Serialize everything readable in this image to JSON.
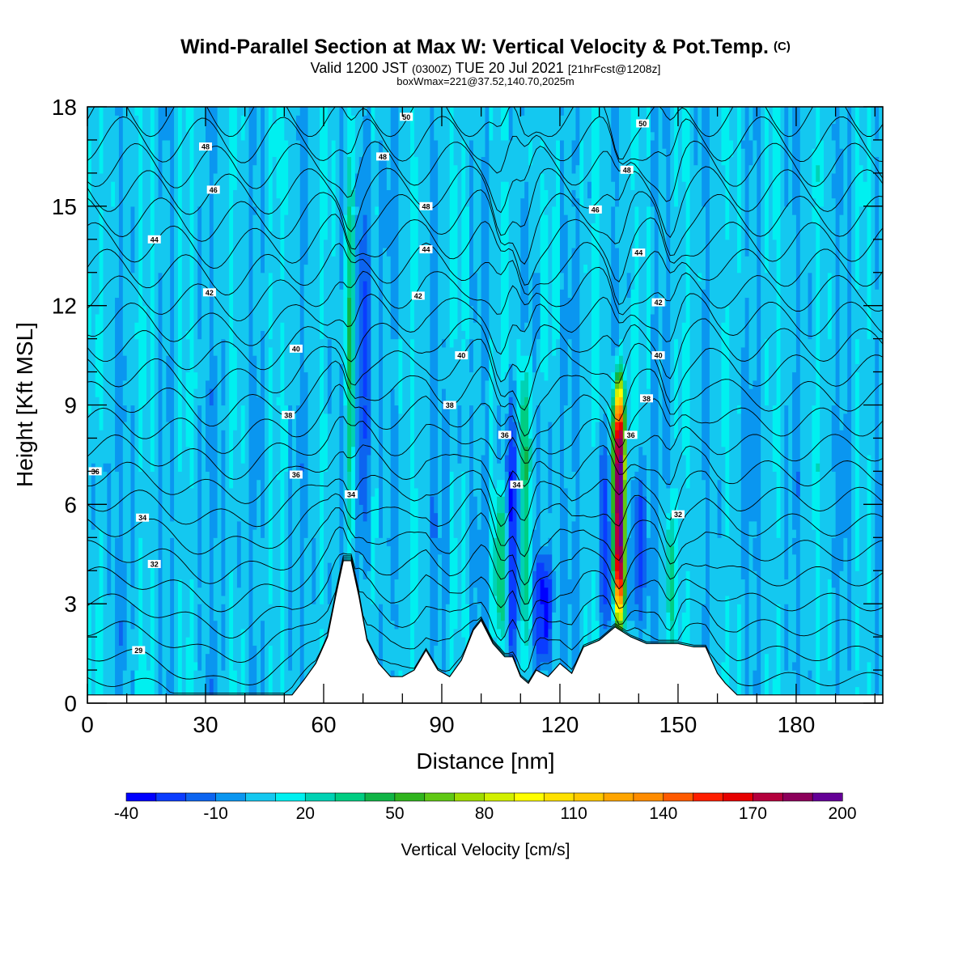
{
  "header": {
    "title": "Wind-Parallel Section at Max W: Vertical Velocity & Pot.Temp.",
    "copyright": "(C)",
    "valid_prefix": "Valid 1200 JST",
    "valid_utc": "(0300Z)",
    "valid_date": "TUE 20 Jul 2021",
    "forecast": "[21hrFcst@1208z]",
    "box_info": "boxWmax=221@37.52,140.70,2025m"
  },
  "chart_data": {
    "type": "heatmap",
    "xlabel": "Distance [nm]",
    "ylabel": "Height [Kft MSL]",
    "xlim": [
      0,
      202
    ],
    "ylim": [
      0,
      18
    ],
    "x_ticks": [
      "0",
      "30",
      "60",
      "90",
      "120",
      "150",
      "180"
    ],
    "y_ticks": [
      "0",
      "3",
      "6",
      "9",
      "12",
      "15",
      "18"
    ],
    "colorbar": {
      "label": "Vertical Velocity [cm/s]",
      "tick_labels": [
        "-40",
        "-10",
        "20",
        "50",
        "80",
        "110",
        "140",
        "170",
        "200"
      ],
      "levels": [
        -40,
        200
      ],
      "colors": [
        "#0000ff",
        "#0a3cff",
        "#0c64f0",
        "#0a96f0",
        "#14c8f0",
        "#00f0f0",
        "#00d2b4",
        "#00cd82",
        "#10b446",
        "#30b41e",
        "#60c814",
        "#a0dc00",
        "#d2f000",
        "#ffff00",
        "#ffe100",
        "#ffc800",
        "#ffa500",
        "#ff8c00",
        "#ff5a00",
        "#ff1e00",
        "#e60000",
        "#b4003c",
        "#8c005a",
        "#640096"
      ]
    },
    "background_value_cms": 5,
    "terrain_kft": [
      [
        0,
        0.25
      ],
      [
        30,
        0.25
      ],
      [
        52,
        0.25
      ],
      [
        55,
        0.7
      ],
      [
        58,
        1.2
      ],
      [
        61,
        2.0
      ],
      [
        63,
        3.2
      ],
      [
        65,
        4.3
      ],
      [
        67,
        4.3
      ],
      [
        69,
        3.2
      ],
      [
        71,
        1.9
      ],
      [
        74,
        1.2
      ],
      [
        77,
        0.8
      ],
      [
        80,
        0.8
      ],
      [
        83,
        1.0
      ],
      [
        86,
        1.6
      ],
      [
        89,
        1.0
      ],
      [
        92,
        0.8
      ],
      [
        95,
        1.3
      ],
      [
        98,
        2.2
      ],
      [
        100,
        2.5
      ],
      [
        103,
        1.8
      ],
      [
        106,
        1.4
      ],
      [
        108,
        1.4
      ],
      [
        110,
        0.8
      ],
      [
        112,
        0.6
      ],
      [
        114,
        1.0
      ],
      [
        117,
        0.8
      ],
      [
        120,
        1.2
      ],
      [
        123,
        0.9
      ],
      [
        126,
        1.7
      ],
      [
        130,
        1.9
      ],
      [
        134,
        2.3
      ],
      [
        138,
        2.0
      ],
      [
        142,
        1.8
      ],
      [
        150,
        1.8
      ],
      [
        154,
        1.7
      ],
      [
        157,
        1.7
      ],
      [
        160,
        0.9
      ],
      [
        162,
        0.6
      ],
      [
        165,
        0.25
      ],
      [
        202,
        0.25
      ]
    ],
    "updraft_cores": [
      {
        "x": 67,
        "z_min_kft": 4.3,
        "z_max_kft": 17.5,
        "peak_cms": 45
      },
      {
        "x": 105,
        "z_min_kft": 2.0,
        "z_max_kft": 6.5,
        "peak_cms": 40
      },
      {
        "x": 111,
        "z_min_kft": 1.0,
        "z_max_kft": 10.5,
        "peak_cms": 55
      },
      {
        "x": 135,
        "z_min_kft": 2.4,
        "z_max_kft": 9.6,
        "peak_cms": 221
      },
      {
        "x": 148,
        "z_min_kft": 1.5,
        "z_max_kft": 6.0,
        "peak_cms": 35
      }
    ],
    "downdraft_cores": [
      {
        "x": 70,
        "z_min_kft": 4,
        "z_max_kft": 17,
        "min_cms": -25
      },
      {
        "x": 108,
        "z_min_kft": 1,
        "z_max_kft": 9,
        "min_cms": -30
      },
      {
        "x": 116,
        "z_min_kft": 1,
        "z_max_kft": 4.5,
        "min_cms": -40
      },
      {
        "x": 132,
        "z_min_kft": 2,
        "z_max_kft": 8,
        "min_cms": -25
      },
      {
        "x": 140,
        "z_min_kft": 2,
        "z_max_kft": 7,
        "min_cms": -20
      }
    ],
    "theta_contour_levels": [
      28,
      29,
      30,
      31,
      32,
      33,
      34,
      35,
      36,
      37,
      38,
      39,
      40,
      41,
      42,
      43,
      44,
      45,
      46,
      47,
      48,
      49,
      50
    ],
    "theta_contour_labels": [
      {
        "text": "29",
        "x": 13,
        "z": 1.6
      },
      {
        "text": "32",
        "x": 17,
        "z": 4.2
      },
      {
        "text": "34",
        "x": 14,
        "z": 5.6
      },
      {
        "text": "36",
        "x": 2,
        "z": 7.0
      },
      {
        "text": "36",
        "x": 53,
        "z": 6.9
      },
      {
        "text": "38",
        "x": 51,
        "z": 8.7
      },
      {
        "text": "40",
        "x": 53,
        "z": 10.7
      },
      {
        "text": "42",
        "x": 31,
        "z": 12.4
      },
      {
        "text": "44",
        "x": 17,
        "z": 14.0
      },
      {
        "text": "46",
        "x": 32,
        "z": 15.5
      },
      {
        "text": "48",
        "x": 30,
        "z": 16.8
      },
      {
        "text": "34",
        "x": 67,
        "z": 6.3
      },
      {
        "text": "50",
        "x": 81,
        "z": 17.7
      },
      {
        "text": "48",
        "x": 75,
        "z": 16.5
      },
      {
        "text": "48",
        "x": 86,
        "z": 15.0
      },
      {
        "text": "44",
        "x": 86,
        "z": 13.7
      },
      {
        "text": "42",
        "x": 84,
        "z": 12.3
      },
      {
        "text": "40",
        "x": 95,
        "z": 10.5
      },
      {
        "text": "38",
        "x": 92,
        "z": 9.0
      },
      {
        "text": "36",
        "x": 106,
        "z": 8.1
      },
      {
        "text": "34",
        "x": 109,
        "z": 6.6
      },
      {
        "text": "50",
        "x": 141,
        "z": 17.5
      },
      {
        "text": "48",
        "x": 137,
        "z": 16.1
      },
      {
        "text": "46",
        "x": 129,
        "z": 14.9
      },
      {
        "text": "44",
        "x": 140,
        "z": 13.6
      },
      {
        "text": "42",
        "x": 145,
        "z": 12.1
      },
      {
        "text": "40",
        "x": 145,
        "z": 10.5
      },
      {
        "text": "38",
        "x": 142,
        "z": 9.2
      },
      {
        "text": "36",
        "x": 138,
        "z": 8.1
      },
      {
        "text": "32",
        "x": 150,
        "z": 5.7
      }
    ]
  }
}
